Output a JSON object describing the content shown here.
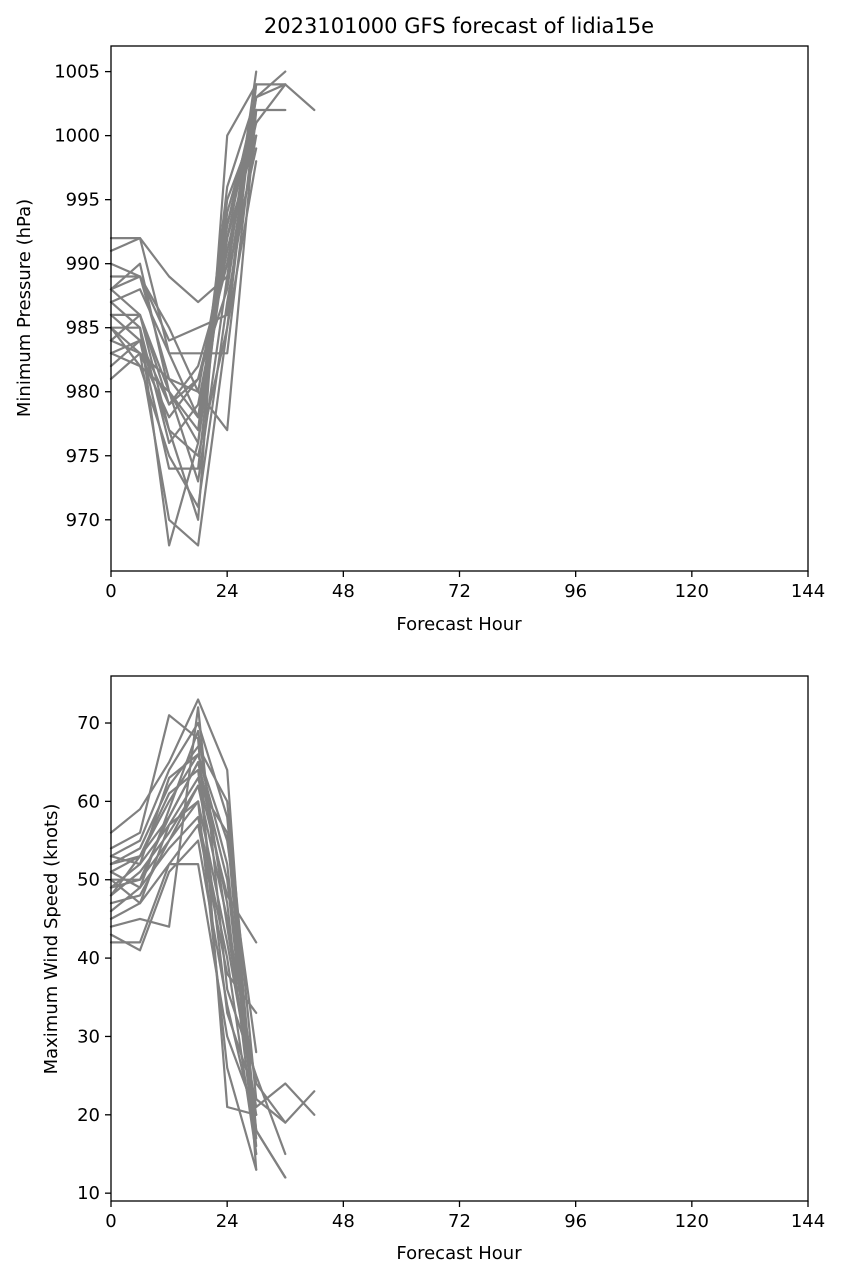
{
  "chart_data": [
    {
      "type": "line",
      "title": "2023101000 GFS forecast of lidia15e",
      "xlabel": "Forecast Hour",
      "ylabel": "Minimum Pressure (hPa)",
      "xlim": [
        0,
        144
      ],
      "ylim": [
        966,
        1007
      ],
      "xticks": [
        0,
        24,
        48,
        72,
        96,
        120,
        144
      ],
      "yticks": [
        970,
        975,
        980,
        985,
        990,
        995,
        1000,
        1005
      ],
      "grid": false,
      "line_color": "#808080",
      "series": [
        {
          "x": [
            0,
            6,
            12,
            18,
            24,
            30
          ],
          "values": [
            991,
            992,
            989,
            987,
            989,
            1005
          ]
        },
        {
          "x": [
            0,
            6,
            12,
            18,
            24,
            30
          ],
          "values": [
            992,
            992,
            983,
            983,
            983,
            1002
          ]
        },
        {
          "x": [
            0,
            6,
            12,
            18,
            24,
            30,
            36
          ],
          "values": [
            990,
            989,
            984,
            985,
            986,
            1004,
            1004
          ]
        },
        {
          "x": [
            0,
            6,
            12,
            18,
            24,
            30
          ],
          "values": [
            989,
            989,
            981,
            978,
            993,
            1003
          ]
        },
        {
          "x": [
            0,
            6,
            12,
            18,
            24,
            30,
            36
          ],
          "values": [
            988,
            990,
            980,
            976,
            995,
            1001,
            1004
          ]
        },
        {
          "x": [
            0,
            6,
            12,
            18,
            24,
            30
          ],
          "values": [
            988,
            986,
            977,
            970,
            1000,
            1004
          ]
        },
        {
          "x": [
            0,
            6,
            12,
            18,
            24,
            30
          ],
          "values": [
            987,
            985,
            968,
            976,
            992,
            1000
          ]
        },
        {
          "x": [
            0,
            6,
            12,
            18,
            24,
            30,
            36
          ],
          "values": [
            986,
            986,
            979,
            981,
            990,
            1003,
            1005
          ]
        },
        {
          "x": [
            0,
            6,
            12,
            18,
            24,
            30
          ],
          "values": [
            986,
            984,
            974,
            974,
            994,
            1002
          ]
        },
        {
          "x": [
            0,
            6,
            12,
            18,
            24,
            30
          ],
          "values": [
            985,
            983,
            970,
            968,
            985,
            1004
          ]
        },
        {
          "x": [
            0,
            6,
            12,
            18,
            24,
            30
          ],
          "values": [
            985,
            985,
            976,
            979,
            991,
            1001
          ]
        },
        {
          "x": [
            0,
            6,
            12,
            18,
            24,
            30,
            36,
            42
          ],
          "values": [
            984,
            983,
            978,
            981,
            988,
            1003,
            1004,
            1002
          ]
        },
        {
          "x": [
            0,
            6,
            12,
            18,
            24,
            30
          ],
          "values": [
            984,
            986,
            980,
            977,
            996,
            1003
          ]
        },
        {
          "x": [
            0,
            6,
            12,
            18,
            24,
            30
          ],
          "values": [
            983,
            982,
            975,
            971,
            987,
            1000
          ]
        },
        {
          "x": [
            0,
            6,
            12,
            18,
            24,
            30
          ],
          "values": [
            983,
            984,
            979,
            982,
            990,
            1002
          ]
        },
        {
          "x": [
            0,
            6,
            12,
            18,
            24,
            30
          ],
          "values": [
            982,
            984,
            977,
            975,
            985,
            998
          ]
        },
        {
          "x": [
            0,
            6,
            12,
            18,
            24,
            30,
            36
          ],
          "values": [
            981,
            983,
            981,
            980,
            977,
            1002,
            1002
          ]
        },
        {
          "x": [
            0,
            6,
            12,
            18,
            24,
            30
          ],
          "values": [
            987,
            988,
            983,
            978,
            992,
            1003
          ]
        },
        {
          "x": [
            0,
            6,
            12,
            18,
            24,
            30
          ],
          "values": [
            988,
            989,
            985,
            980,
            993,
            1002
          ]
        },
        {
          "x": [
            0,
            6,
            12,
            18,
            24,
            30
          ],
          "values": [
            985,
            982,
            980,
            973,
            989,
            999
          ]
        }
      ]
    },
    {
      "type": "line",
      "title": "",
      "xlabel": "Forecast Hour",
      "ylabel": "Maximum Wind Speed (knots)",
      "xlim": [
        0,
        144
      ],
      "ylim": [
        9,
        76
      ],
      "xticks": [
        0,
        24,
        48,
        72,
        96,
        120,
        144
      ],
      "yticks": [
        10,
        20,
        30,
        40,
        50,
        60,
        70
      ],
      "grid": false,
      "line_color": "#808080",
      "series": [
        {
          "x": [
            0,
            6,
            12,
            18,
            24,
            30
          ],
          "values": [
            56,
            59,
            65,
            73,
            64,
            13
          ]
        },
        {
          "x": [
            0,
            6,
            12,
            18,
            24,
            30
          ],
          "values": [
            54,
            56,
            71,
            68,
            21,
            20
          ]
        },
        {
          "x": [
            0,
            6,
            12,
            18,
            24,
            30,
            36
          ],
          "values": [
            53,
            55,
            64,
            70,
            58,
            18,
            12
          ]
        },
        {
          "x": [
            0,
            6,
            12,
            18,
            24,
            30,
            36
          ],
          "values": [
            52,
            54,
            62,
            67,
            60,
            22,
            19
          ]
        },
        {
          "x": [
            0,
            6,
            12,
            18,
            24,
            30
          ],
          "values": [
            51,
            53,
            60,
            66,
            55,
            28
          ]
        },
        {
          "x": [
            0,
            6,
            12,
            18,
            24,
            30
          ],
          "values": [
            50,
            50,
            58,
            65,
            50,
            17
          ]
        },
        {
          "x": [
            0,
            6,
            12,
            18,
            24,
            30
          ],
          "values": [
            49,
            52,
            57,
            63,
            48,
            42
          ]
        },
        {
          "x": [
            0,
            6,
            12,
            18,
            24,
            30,
            36,
            42
          ],
          "values": [
            48,
            51,
            56,
            62,
            45,
            24,
            19,
            23
          ]
        },
        {
          "x": [
            0,
            6,
            12,
            18,
            24,
            30,
            36,
            42
          ],
          "values": [
            47,
            48,
            55,
            60,
            42,
            21,
            24,
            20
          ]
        },
        {
          "x": [
            0,
            6,
            12,
            18,
            24,
            30
          ],
          "values": [
            46,
            49,
            54,
            58,
            40,
            15
          ]
        },
        {
          "x": [
            0,
            6,
            12,
            18,
            24,
            30
          ],
          "values": [
            45,
            47,
            52,
            57,
            38,
            33
          ]
        },
        {
          "x": [
            0,
            6,
            12,
            18,
            24,
            30,
            36
          ],
          "values": [
            44,
            45,
            44,
            72,
            36,
            25,
            15
          ]
        },
        {
          "x": [
            0,
            6,
            12,
            18,
            24,
            30
          ],
          "values": [
            43,
            41,
            51,
            55,
            34,
            18
          ]
        },
        {
          "x": [
            0,
            6,
            12,
            18,
            24,
            30
          ],
          "values": [
            42,
            42,
            52,
            52,
            30,
            20
          ]
        },
        {
          "x": [
            0,
            6,
            12,
            18,
            24,
            30
          ],
          "values": [
            50,
            47,
            57,
            60,
            26,
            13
          ]
        },
        {
          "x": [
            0,
            6,
            12,
            18,
            24,
            30
          ],
          "values": [
            52,
            53,
            61,
            64,
            33,
            22
          ]
        },
        {
          "x": [
            0,
            6,
            12,
            18,
            24,
            30,
            36
          ],
          "values": [
            53,
            52,
            63,
            66,
            52,
            18,
            12
          ]
        },
        {
          "x": [
            0,
            6,
            12,
            18,
            24,
            30
          ],
          "values": [
            49,
            50,
            55,
            62,
            56,
            16
          ]
        },
        {
          "x": [
            0,
            6,
            12,
            18,
            24,
            30
          ],
          "values": [
            51,
            49,
            59,
            69,
            44,
            20
          ]
        },
        {
          "x": [
            0,
            6,
            12,
            18,
            24,
            30
          ],
          "values": [
            48,
            53,
            58,
            65,
            47,
            15
          ]
        }
      ]
    }
  ]
}
